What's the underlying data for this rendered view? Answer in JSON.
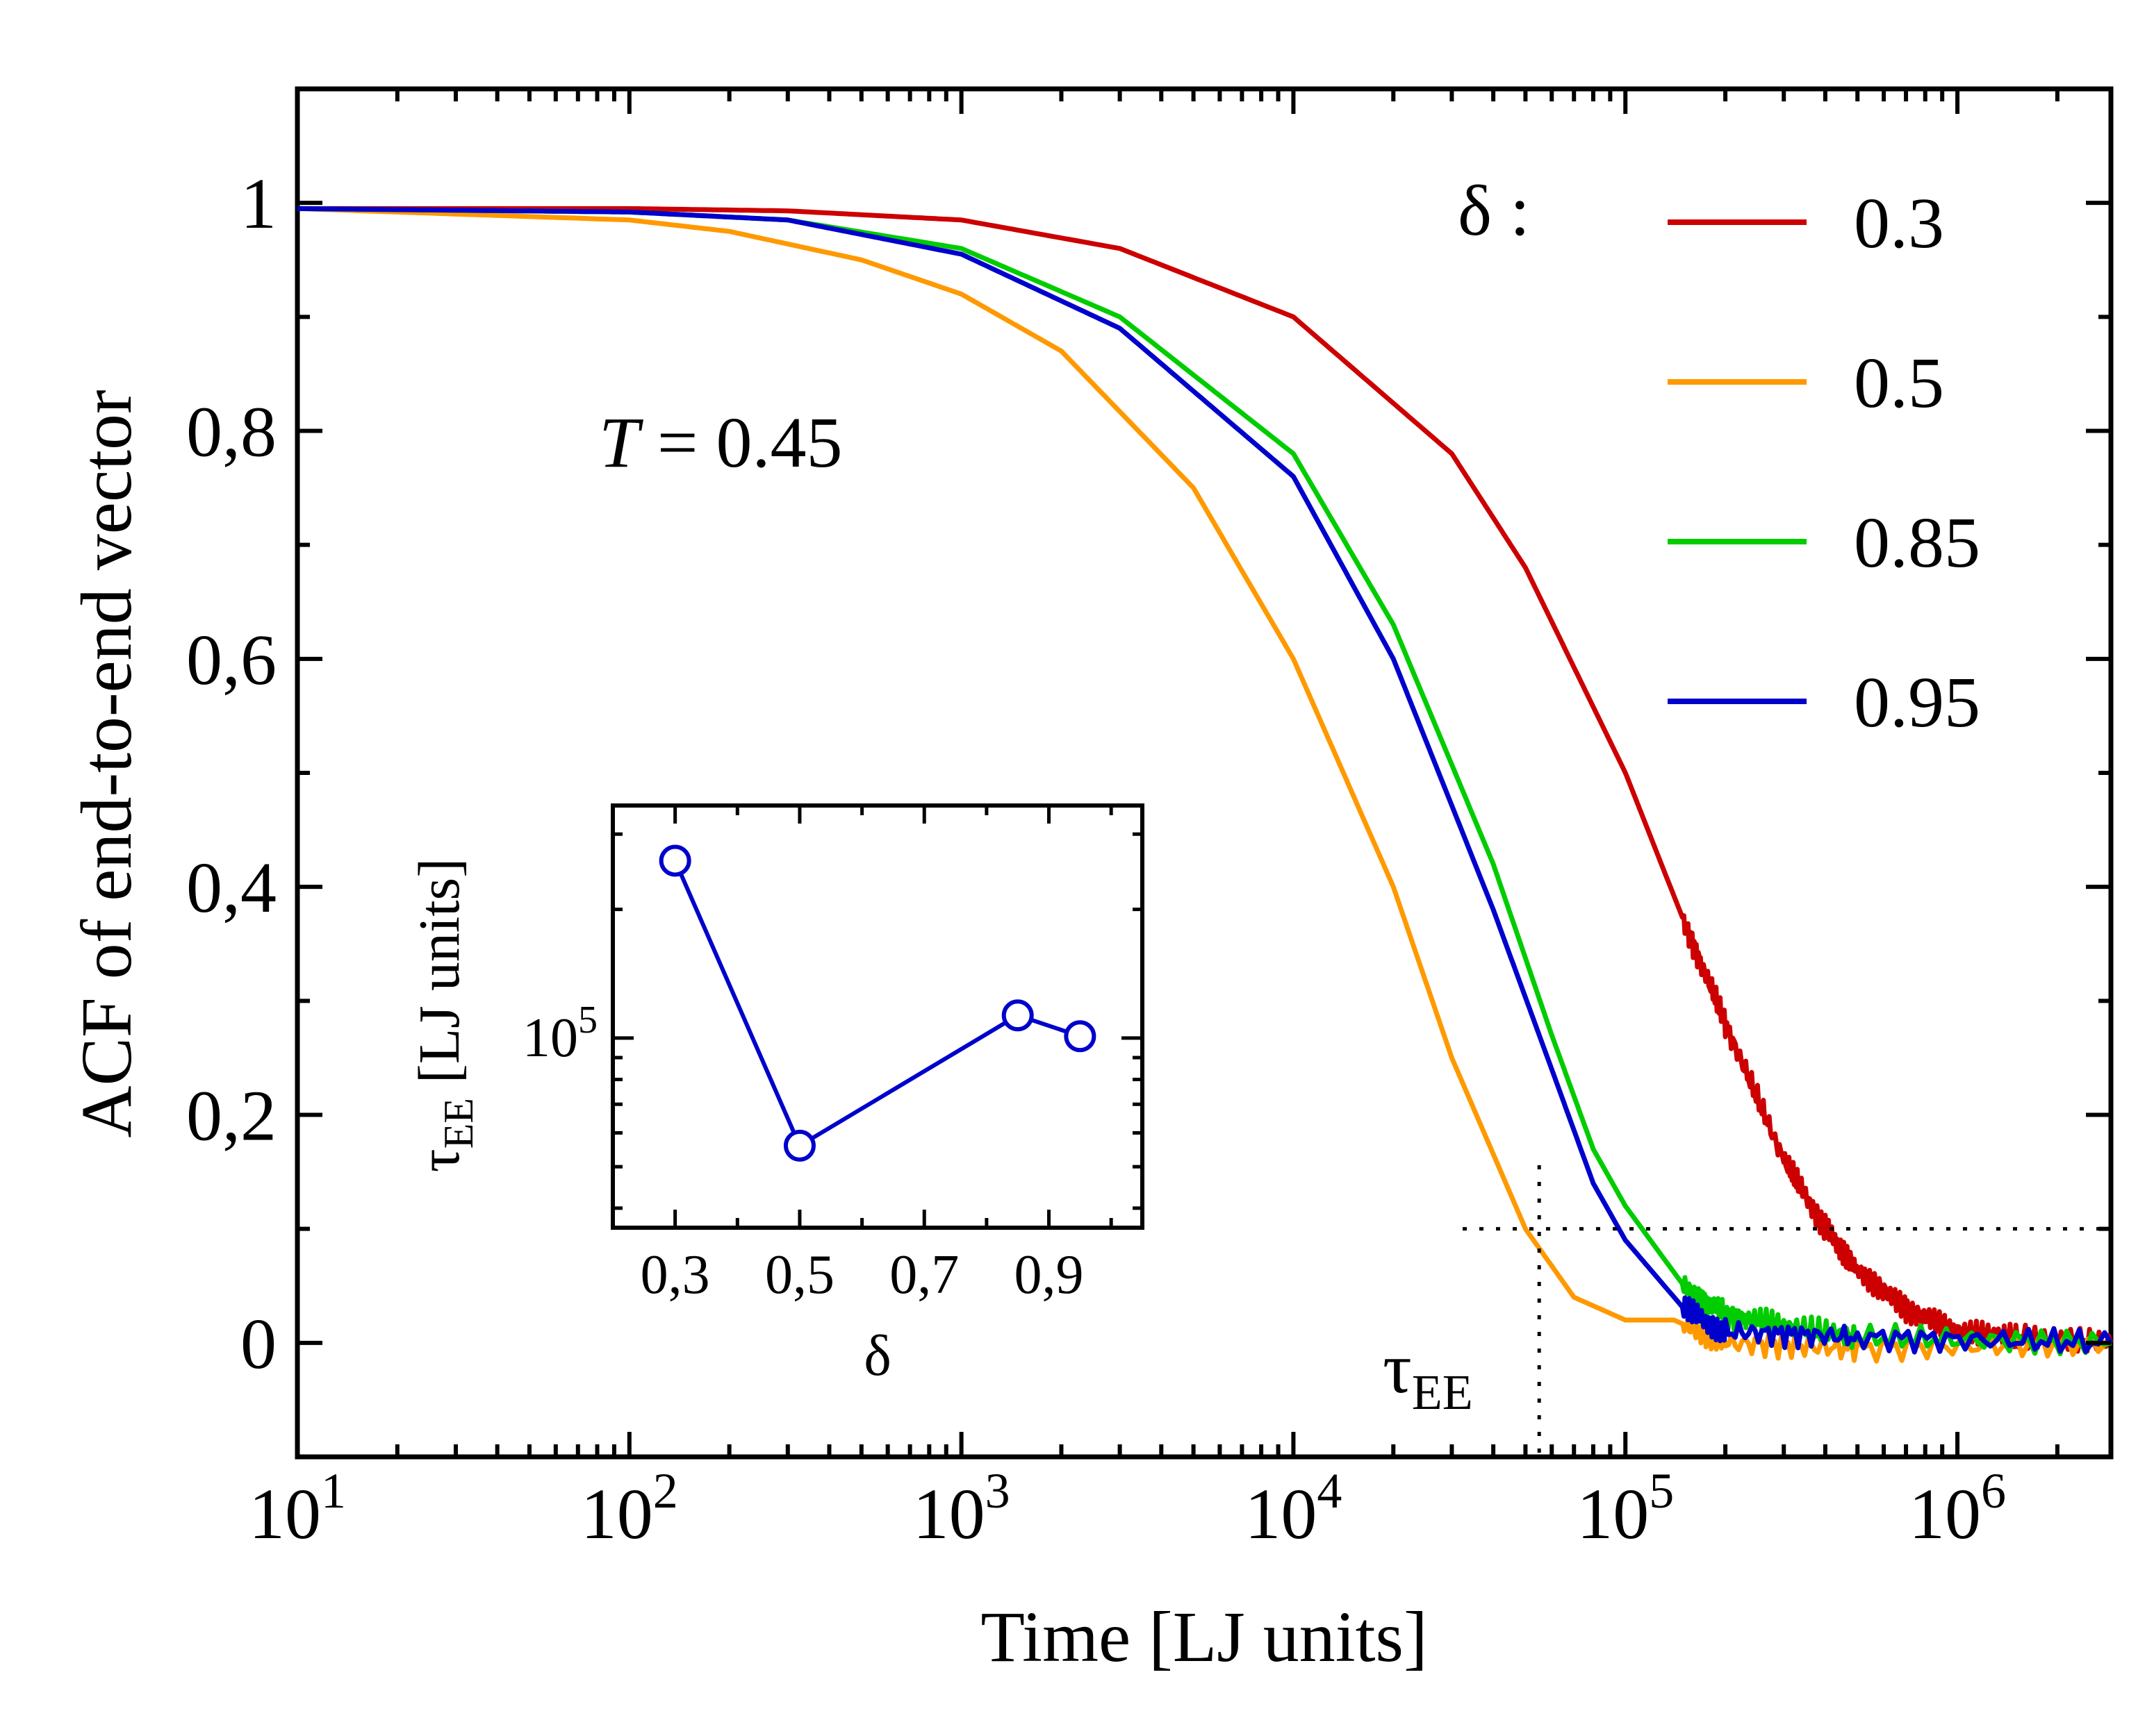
{
  "chart_data": {
    "main": {
      "type": "line",
      "xscale": "log",
      "xlim": [
        10,
        2900000
      ],
      "ylim": [
        -0.1,
        1.1
      ],
      "xlabel": "Time [LJ units]",
      "ylabel": "ACF of end-to-end vector",
      "x_ticks": [
        {
          "base": "10",
          "exp": "1",
          "value": 10
        },
        {
          "base": "10",
          "exp": "2",
          "value": 100
        },
        {
          "base": "10",
          "exp": "3",
          "value": 1000
        },
        {
          "base": "10",
          "exp": "4",
          "value": 10000
        },
        {
          "base": "10",
          "exp": "5",
          "value": 100000
        },
        {
          "base": "10",
          "exp": "6",
          "value": 1000000
        }
      ],
      "y_ticks": [
        {
          "label": "0",
          "value": 0
        },
        {
          "label": "0,2",
          "value": 0.2
        },
        {
          "label": "0,4",
          "value": 0.4
        },
        {
          "label": "0,6",
          "value": 0.6
        },
        {
          "label": "0,8",
          "value": 0.8
        },
        {
          "label": "1",
          "value": 1
        }
      ],
      "annotation_T": {
        "var": "T",
        "rest": " = 0.45"
      },
      "legend_title": "δ :",
      "legend_position": "top-right",
      "series": [
        {
          "name": "0.3",
          "color": "#cc0000",
          "points": [
            [
              10,
              0.995
            ],
            [
              100,
              0.995
            ],
            [
              300,
              0.993
            ],
            [
              1000,
              0.985
            ],
            [
              3000,
              0.96
            ],
            [
              10000,
              0.9
            ],
            [
              30000,
              0.78
            ],
            [
              50000,
              0.68
            ],
            [
              100000,
              0.5
            ],
            [
              150000,
              0.37
            ],
            [
              200000,
              0.28
            ],
            [
              300000,
              0.16
            ],
            [
              400000,
              0.1
            ],
            [
              500000,
              0.065
            ],
            [
              700000,
              0.03
            ],
            [
              1000000,
              0.01
            ],
            [
              1500000,
              0.005
            ],
            [
              2900000,
              0.0
            ]
          ]
        },
        {
          "name": "0.5",
          "color": "#ff9900",
          "points": [
            [
              10,
              0.995
            ],
            [
              100,
              0.985
            ],
            [
              200,
              0.975
            ],
            [
              500,
              0.95
            ],
            [
              1000,
              0.92
            ],
            [
              2000,
              0.87
            ],
            [
              5000,
              0.75
            ],
            [
              10000,
              0.6
            ],
            [
              20000,
              0.4
            ],
            [
              30000,
              0.25
            ],
            [
              50000,
              0.1
            ],
            [
              70000,
              0.04
            ],
            [
              100000,
              0.02
            ],
            [
              140000,
              0.02
            ],
            [
              200000,
              0.0
            ],
            [
              500000,
              -0.005
            ],
            [
              2900000,
              0.0
            ]
          ]
        },
        {
          "name": "0.85",
          "color": "#00cc00",
          "points": [
            [
              10,
              0.995
            ],
            [
              100,
              0.992
            ],
            [
              300,
              0.985
            ],
            [
              1000,
              0.96
            ],
            [
              3000,
              0.9
            ],
            [
              10000,
              0.78
            ],
            [
              20000,
              0.63
            ],
            [
              40000,
              0.42
            ],
            [
              60000,
              0.27
            ],
            [
              80000,
              0.17
            ],
            [
              100000,
              0.12
            ],
            [
              150000,
              0.05
            ],
            [
              200000,
              0.025
            ],
            [
              300000,
              0.015
            ],
            [
              500000,
              0.005
            ],
            [
              2900000,
              0.0
            ]
          ]
        },
        {
          "name": "0.95",
          "color": "#0000cc",
          "points": [
            [
              10,
              0.995
            ],
            [
              100,
              0.992
            ],
            [
              300,
              0.985
            ],
            [
              1000,
              0.955
            ],
            [
              3000,
              0.89
            ],
            [
              10000,
              0.76
            ],
            [
              20000,
              0.6
            ],
            [
              40000,
              0.38
            ],
            [
              60000,
              0.24
            ],
            [
              80000,
              0.14
            ],
            [
              100000,
              0.09
            ],
            [
              150000,
              0.03
            ],
            [
              200000,
              0.01
            ],
            [
              500000,
              0.005
            ],
            [
              2900000,
              0.0
            ]
          ]
        }
      ],
      "threshold_level": 0.1,
      "tau_x": 55000,
      "tau_label": {
        "base": "τ",
        "sub": "EE"
      }
    },
    "inset": {
      "type": "line+scatter",
      "xlabel": "δ",
      "ylabel_base": "τ",
      "ylabel_sub": "EE",
      "ylabel_rest": " [LJ units]",
      "yscale": "log",
      "xlim": [
        0.2,
        1.05
      ],
      "ylim": [
        36000,
        350000
      ],
      "x_ticks": [
        {
          "label": "0,3",
          "value": 0.3
        },
        {
          "label": "0,5",
          "value": 0.5
        },
        {
          "label": "0,7",
          "value": 0.7
        },
        {
          "label": "0,9",
          "value": 0.9
        }
      ],
      "y_ticks": [
        {
          "base": "10",
          "exp": "5",
          "value": 100000
        }
      ],
      "color": "#0000cc",
      "points": [
        {
          "x": 0.3,
          "y": 260000
        },
        {
          "x": 0.5,
          "y": 56000
        },
        {
          "x": 0.85,
          "y": 113000
        },
        {
          "x": 0.95,
          "y": 101000
        }
      ]
    }
  }
}
